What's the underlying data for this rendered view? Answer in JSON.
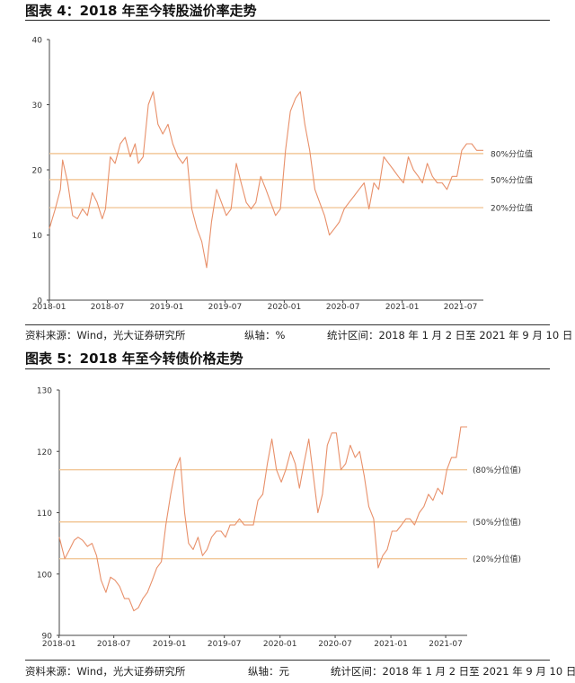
{
  "figures": [
    {
      "title": "图表 4：2018 年至今转股溢价率走势",
      "source": "资料来源：Wind，光大证券研究所",
      "axis_note": "纵轴：%",
      "interval": "统计区间：2018 年 1 月 2 日至 2021 年 9 月 10 日"
    },
    {
      "title": "图表 5：2018 年至今转债价格走势",
      "source": "资料来源：Wind，光大证券研究所",
      "axis_note": "纵轴：元",
      "interval": "统计区间：2018 年 1 月 2 日至 2021 年 9 月 10 日"
    }
  ],
  "chart_data": [
    {
      "type": "line",
      "title": "",
      "xlabel": "",
      "ylabel": "%",
      "x_range": [
        "2018-01-02",
        "2021-09-10"
      ],
      "ylim": [
        0,
        40
      ],
      "y_ticks": [
        0,
        10,
        20,
        30,
        40
      ],
      "x_tick_labels": [
        "2018-01",
        "2018-07",
        "2019-01",
        "2019-07",
        "2020-01",
        "2020-07",
        "2021-01",
        "2021-07"
      ],
      "grid": false,
      "line_color": "#e8906a",
      "reference_lines": [
        {
          "label": "80%分位值",
          "value": 22.5
        },
        {
          "label": "50%分位值",
          "value": 18.5
        },
        {
          "label": "20%分位值",
          "value": 14.2
        }
      ],
      "ref_color": "#f2c89a",
      "series": [
        {
          "x": [
            "2018-01-02",
            "2018-01-20",
            "2018-02-05",
            "2018-02-12",
            "2018-02-28",
            "2018-03-15",
            "2018-03-30",
            "2018-04-15",
            "2018-04-30",
            "2018-05-15",
            "2018-05-30",
            "2018-06-15",
            "2018-06-25",
            "2018-07-10",
            "2018-07-25",
            "2018-08-10",
            "2018-08-25",
            "2018-09-10",
            "2018-09-25",
            "2018-10-05",
            "2018-10-20",
            "2018-11-05",
            "2018-11-20",
            "2018-12-05",
            "2018-12-20",
            "2019-01-05",
            "2019-01-20",
            "2019-02-05",
            "2019-02-20",
            "2019-03-05",
            "2019-03-20",
            "2019-04-05",
            "2019-04-20",
            "2019-05-05",
            "2019-05-20",
            "2019-06-05",
            "2019-06-20",
            "2019-07-05",
            "2019-07-20",
            "2019-08-05",
            "2019-08-20",
            "2019-09-05",
            "2019-09-20",
            "2019-10-05",
            "2019-10-20",
            "2019-11-05",
            "2019-11-20",
            "2019-12-05",
            "2019-12-20",
            "2020-01-05",
            "2020-01-20",
            "2020-02-05",
            "2020-02-20",
            "2020-03-05",
            "2020-03-20",
            "2020-04-05",
            "2020-04-20",
            "2020-05-05",
            "2020-05-20",
            "2020-06-05",
            "2020-06-20",
            "2020-07-05",
            "2020-07-20",
            "2020-08-05",
            "2020-08-20",
            "2020-09-05",
            "2020-09-20",
            "2020-10-05",
            "2020-10-20",
            "2020-11-05",
            "2020-11-20",
            "2020-12-05",
            "2020-12-20",
            "2021-01-05",
            "2021-01-20",
            "2021-02-05",
            "2021-02-20",
            "2021-03-05",
            "2021-03-20",
            "2021-04-05",
            "2021-04-20",
            "2021-05-05",
            "2021-05-20",
            "2021-06-05",
            "2021-06-20",
            "2021-07-05",
            "2021-07-20",
            "2021-08-05",
            "2021-08-20",
            "2021-09-10"
          ],
          "values": [
            11,
            14,
            17,
            21.5,
            18,
            13,
            12.5,
            14,
            13,
            16.5,
            15,
            12.5,
            14,
            22,
            21,
            24,
            25,
            22,
            24,
            21,
            22,
            30,
            32,
            27,
            25.5,
            27,
            24,
            22,
            21,
            22,
            14,
            11,
            9,
            5,
            12,
            17,
            15,
            13,
            14,
            21,
            18,
            15,
            14,
            15,
            19,
            17,
            15,
            13,
            14,
            23,
            29,
            31,
            32,
            27,
            23,
            17,
            15,
            13,
            10,
            11,
            12,
            14,
            15,
            16,
            17,
            18,
            14,
            18,
            17,
            22,
            21,
            20,
            19,
            18,
            22,
            20,
            19,
            18,
            21,
            19,
            18,
            18,
            17,
            19,
            19,
            23,
            24,
            24,
            23,
            23
          ]
        }
      ]
    },
    {
      "type": "line",
      "title": "",
      "xlabel": "",
      "ylabel": "元",
      "x_range": [
        "2018-01-02",
        "2021-09-10"
      ],
      "ylim": [
        90,
        130
      ],
      "y_ticks": [
        90,
        100,
        110,
        120,
        130
      ],
      "x_tick_labels": [
        "2018-01",
        "2018-07",
        "2019-01",
        "2019-07",
        "2020-01",
        "2020-07",
        "2021-01",
        "2021-07"
      ],
      "grid": false,
      "line_color": "#e8906a",
      "reference_lines": [
        {
          "label": "(80%分位值)",
          "value": 117
        },
        {
          "label": "(50%分位值)",
          "value": 108.5
        },
        {
          "label": "(20%分位值)",
          "value": 102.5
        }
      ],
      "ref_color": "#f2c89a",
      "series": [
        {
          "x": [
            "2018-01-02",
            "2018-01-20",
            "2018-02-05",
            "2018-02-20",
            "2018-03-05",
            "2018-03-20",
            "2018-04-05",
            "2018-04-20",
            "2018-05-05",
            "2018-05-20",
            "2018-06-05",
            "2018-06-20",
            "2018-07-05",
            "2018-07-20",
            "2018-08-05",
            "2018-08-20",
            "2018-09-05",
            "2018-09-20",
            "2018-10-05",
            "2018-10-20",
            "2018-11-05",
            "2018-11-20",
            "2018-12-05",
            "2018-12-20",
            "2019-01-05",
            "2019-01-20",
            "2019-02-05",
            "2019-02-20",
            "2019-03-05",
            "2019-03-20",
            "2019-04-05",
            "2019-04-20",
            "2019-05-05",
            "2019-05-20",
            "2019-06-05",
            "2019-06-20",
            "2019-07-05",
            "2019-07-20",
            "2019-08-05",
            "2019-08-20",
            "2019-09-05",
            "2019-09-20",
            "2019-10-05",
            "2019-10-20",
            "2019-11-05",
            "2019-11-20",
            "2019-12-05",
            "2019-12-20",
            "2020-01-05",
            "2020-01-20",
            "2020-02-05",
            "2020-02-20",
            "2020-03-05",
            "2020-03-20",
            "2020-04-05",
            "2020-04-20",
            "2020-05-05",
            "2020-05-20",
            "2020-06-05",
            "2020-06-20",
            "2020-07-05",
            "2020-07-20",
            "2020-08-05",
            "2020-08-20",
            "2020-09-05",
            "2020-09-20",
            "2020-10-05",
            "2020-10-20",
            "2020-11-05",
            "2020-11-20",
            "2020-12-05",
            "2020-12-20",
            "2021-01-05",
            "2021-01-20",
            "2021-02-05",
            "2021-02-20",
            "2021-03-05",
            "2021-03-20",
            "2021-04-05",
            "2021-04-20",
            "2021-05-05",
            "2021-05-20",
            "2021-06-05",
            "2021-06-20",
            "2021-07-05",
            "2021-07-20",
            "2021-08-05",
            "2021-08-20",
            "2021-09-10"
          ],
          "values": [
            106,
            102.5,
            104,
            105.5,
            106,
            105.5,
            104.5,
            105,
            103,
            99,
            97,
            99.5,
            99,
            98,
            96,
            96,
            94,
            94.5,
            96,
            97,
            99,
            101,
            102,
            108,
            113,
            117,
            119,
            110,
            105,
            104,
            106,
            103,
            104,
            106,
            107,
            107,
            106,
            108,
            108,
            109,
            108,
            108,
            108,
            112,
            113,
            118,
            122,
            117,
            115,
            117,
            120,
            118,
            114,
            118,
            122,
            116,
            110,
            113,
            121,
            123,
            123,
            117,
            118,
            121,
            119,
            120,
            116,
            111,
            109,
            101,
            103,
            104,
            107,
            107,
            108,
            109,
            109,
            108,
            110,
            111,
            113,
            112,
            114,
            113,
            117,
            119,
            119,
            124,
            124
          ]
        }
      ]
    }
  ]
}
